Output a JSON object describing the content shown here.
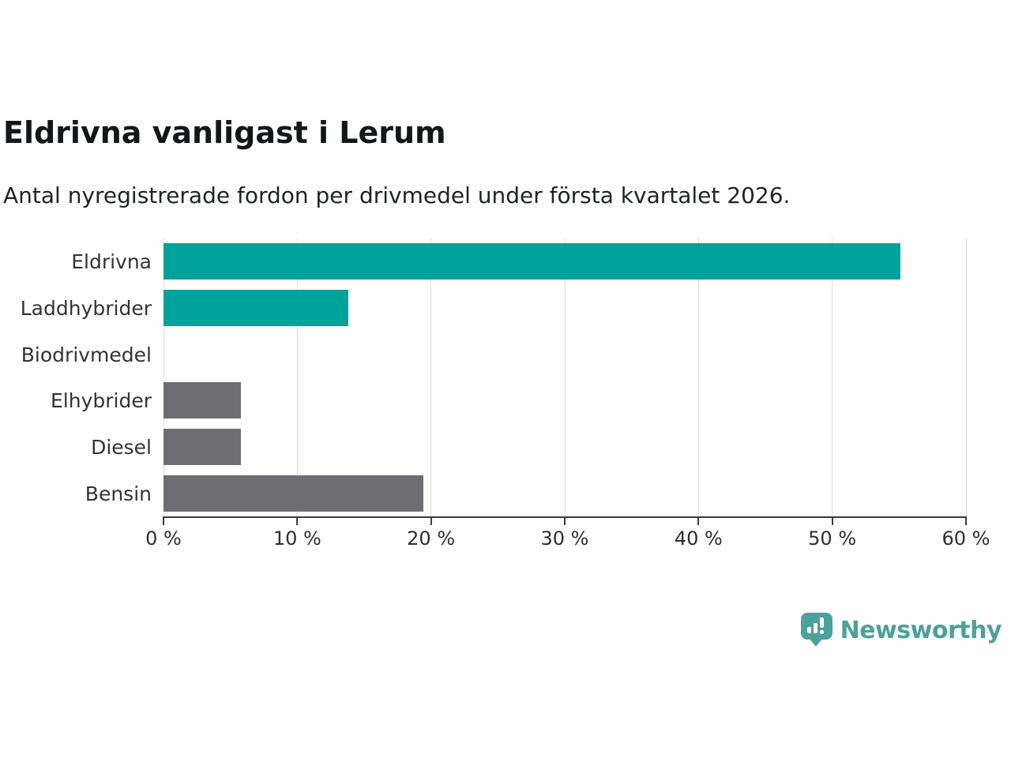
{
  "header": {
    "title": "Eldrivna vanligast i Lerum",
    "subtitle": "Antal nyregistrerade fordon per drivmedel under första kvartalet 2026."
  },
  "chart_data": {
    "type": "bar",
    "orientation": "horizontal",
    "title": "Eldrivna vanligast i Lerum",
    "subtitle": "Antal nyregistrerade fordon per drivmedel under första kvartalet 2026.",
    "categories": [
      "Eldrivna",
      "Laddhybrider",
      "Biodrivmedel",
      "Elhybrider",
      "Diesel",
      "Bensin"
    ],
    "values": [
      55.1,
      13.8,
      0,
      5.8,
      5.8,
      19.4
    ],
    "unit": "%",
    "bar_colors": [
      "#00a29b",
      "#00a29b",
      "#00a29b",
      "#6e6e72",
      "#6e6e72",
      "#6e6e72"
    ],
    "xlim": [
      0,
      60
    ],
    "x_ticks": [
      0,
      10,
      20,
      30,
      40,
      50,
      60
    ],
    "x_tick_labels": [
      "0 %",
      "10 %",
      "20 %",
      "30 %",
      "40 %",
      "50 %",
      "60 %"
    ],
    "grid": true,
    "legend": "none",
    "colors": {
      "accent_teal": "#00a29b",
      "neutral_gray": "#6e6e72",
      "gridline": "#dcdcdc",
      "axis": "#3b3b3b",
      "text": "#333333"
    }
  },
  "footer": {
    "brand": "Newsworthy",
    "brand_color": "#4ba19b",
    "logo_icon": "bar-chart-speech-bubble-icon"
  }
}
